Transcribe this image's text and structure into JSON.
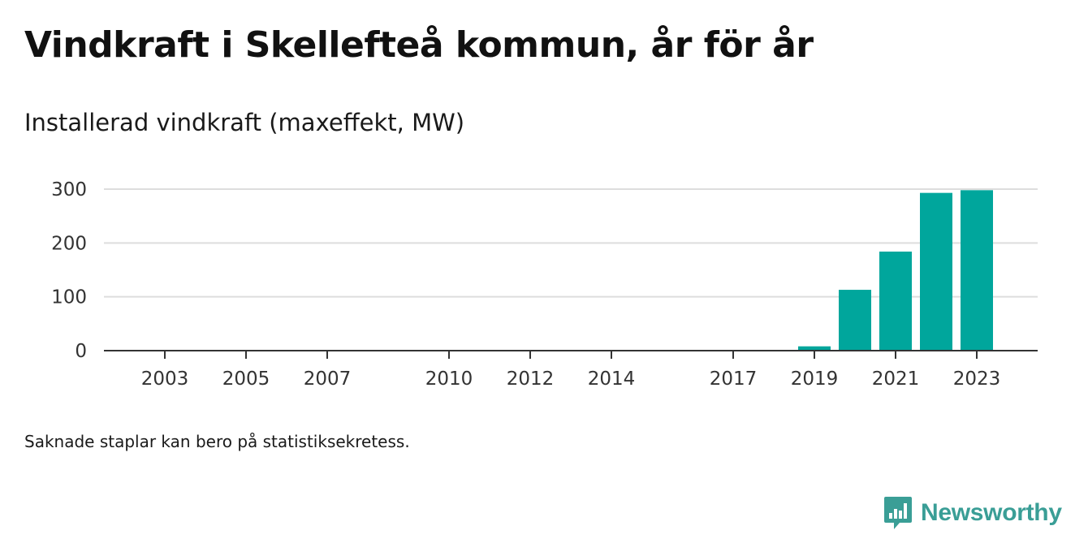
{
  "title": "Vindkraft i Skellefteå kommun, år för år",
  "subtitle": "Installerad vindkraft (maxeffekt, MW)",
  "footnote": "Saknade staplar kan bero på statistiksekretess.",
  "brand": {
    "name": "Newsworthy",
    "color": "#3a9e96"
  },
  "chart_data": {
    "type": "bar",
    "bar_color": "#00a69c",
    "x_ticks": [
      2003,
      2005,
      2007,
      2010,
      2012,
      2014,
      2017,
      2019,
      2021,
      2023
    ],
    "y_ticks": [
      0,
      100,
      200,
      300
    ],
    "xlim": [
      2001.5,
      2024.5
    ],
    "ylim": [
      0,
      300
    ],
    "grid": true,
    "bars": [
      {
        "year": 2019,
        "value": 8
      },
      {
        "year": 2020,
        "value": 113
      },
      {
        "year": 2021,
        "value": 184
      },
      {
        "year": 2022,
        "value": 293
      },
      {
        "year": 2023,
        "value": 298
      }
    ]
  }
}
